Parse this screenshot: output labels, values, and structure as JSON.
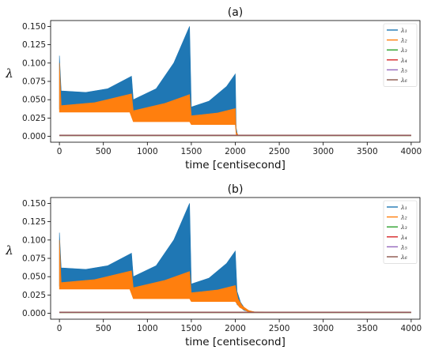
{
  "chart_data": [
    {
      "type": "line",
      "title": "(a)",
      "xlabel": "time [centisecond]",
      "ylabel": "λ",
      "xlim": [
        -100,
        4100
      ],
      "ylim": [
        -0.008,
        0.158
      ],
      "xticks": [
        "0",
        "500",
        "1000",
        "1500",
        "2000",
        "2500",
        "3000",
        "3500",
        "4000"
      ],
      "yticks": [
        "0.000",
        "0.025",
        "0.050",
        "0.075",
        "0.100",
        "0.125",
        "0.150"
      ],
      "legend_position": "top-right",
      "grid": false,
      "series": [
        {
          "name": "λ₁",
          "color": "#1f77b4",
          "upper": [
            [
              0,
              0.11
            ],
            [
              20,
              0.062
            ],
            [
              300,
              0.06
            ],
            [
              550,
              0.065
            ],
            [
              820,
              0.082
            ],
            [
              840,
              0.05
            ],
            [
              1100,
              0.065
            ],
            [
              1300,
              0.1
            ],
            [
              1480,
              0.15
            ],
            [
              1500,
              0.04
            ],
            [
              1700,
              0.048
            ],
            [
              1900,
              0.068
            ],
            [
              2000,
              0.085
            ],
            [
              2010,
              0.012
            ],
            [
              2020,
              0.005
            ],
            [
              2030,
              0.001
            ],
            [
              4000,
              0.001
            ]
          ],
          "lower": [
            [
              0,
              0.037
            ],
            [
              500,
              0.037
            ],
            [
              800,
              0.037
            ],
            [
              840,
              0.024
            ],
            [
              1480,
              0.024
            ],
            [
              1500,
              0.02
            ],
            [
              2000,
              0.02
            ],
            [
              2010,
              0.005
            ],
            [
              2030,
              0.001
            ],
            [
              4000,
              0.001
            ]
          ]
        },
        {
          "name": "λ₂",
          "color": "#ff7f0e",
          "upper": [
            [
              0,
              0.1
            ],
            [
              20,
              0.042
            ],
            [
              400,
              0.046
            ],
            [
              820,
              0.058
            ],
            [
              840,
              0.035
            ],
            [
              1200,
              0.045
            ],
            [
              1480,
              0.057
            ],
            [
              1500,
              0.028
            ],
            [
              1800,
              0.032
            ],
            [
              2000,
              0.038
            ],
            [
              2010,
              0.006
            ],
            [
              2030,
              0.002
            ],
            [
              4000,
              0.001
            ]
          ],
          "lower": [
            [
              0,
              0.033
            ],
            [
              800,
              0.033
            ],
            [
              840,
              0.02
            ],
            [
              1480,
              0.02
            ],
            [
              1500,
              0.016
            ],
            [
              2000,
              0.016
            ],
            [
              2010,
              0.002
            ],
            [
              4000,
              0.001
            ]
          ]
        },
        {
          "name": "λ₃",
          "color": "#2ca02c",
          "values": [
            [
              0,
              0.001
            ],
            [
              4000,
              0.001
            ]
          ]
        },
        {
          "name": "λ₄",
          "color": "#d62728",
          "values": [
            [
              0,
              0.0012
            ],
            [
              4000,
              0.0012
            ]
          ]
        },
        {
          "name": "λ₅",
          "color": "#9467bd",
          "values": [
            [
              0,
              0.0014
            ],
            [
              4000,
              0.0014
            ]
          ]
        },
        {
          "name": "λ₆",
          "color": "#8c564b",
          "values": [
            [
              0,
              0.0016
            ],
            [
              4000,
              0.0016
            ]
          ]
        }
      ]
    },
    {
      "type": "line",
      "title": "(b)",
      "xlabel": "time [centisecond]",
      "ylabel": "λ",
      "xlim": [
        -100,
        4100
      ],
      "ylim": [
        -0.008,
        0.158
      ],
      "xticks": [
        "0",
        "500",
        "1000",
        "1500",
        "2000",
        "2500",
        "3000",
        "3500",
        "4000"
      ],
      "yticks": [
        "0.000",
        "0.025",
        "0.050",
        "0.075",
        "0.100",
        "0.125",
        "0.150"
      ],
      "legend_position": "top-right",
      "grid": false,
      "series": [
        {
          "name": "λ₁",
          "color": "#1f77b4",
          "upper": [
            [
              0,
              0.11
            ],
            [
              20,
              0.062
            ],
            [
              300,
              0.06
            ],
            [
              550,
              0.065
            ],
            [
              820,
              0.082
            ],
            [
              840,
              0.05
            ],
            [
              1100,
              0.065
            ],
            [
              1300,
              0.1
            ],
            [
              1480,
              0.15
            ],
            [
              1500,
              0.04
            ],
            [
              1700,
              0.048
            ],
            [
              1900,
              0.068
            ],
            [
              2000,
              0.085
            ],
            [
              2020,
              0.03
            ],
            [
              2060,
              0.015
            ],
            [
              2100,
              0.008
            ],
            [
              2150,
              0.004
            ],
            [
              2200,
              0.002
            ],
            [
              2250,
              0.001
            ],
            [
              4000,
              0.001
            ]
          ],
          "lower": [
            [
              0,
              0.037
            ],
            [
              500,
              0.037
            ],
            [
              800,
              0.037
            ],
            [
              840,
              0.024
            ],
            [
              1480,
              0.024
            ],
            [
              1500,
              0.02
            ],
            [
              2000,
              0.02
            ],
            [
              2020,
              0.012
            ],
            [
              2100,
              0.004
            ],
            [
              2200,
              0.001
            ],
            [
              4000,
              0.001
            ]
          ]
        },
        {
          "name": "λ₂",
          "color": "#ff7f0e",
          "upper": [
            [
              0,
              0.1
            ],
            [
              20,
              0.042
            ],
            [
              400,
              0.046
            ],
            [
              820,
              0.058
            ],
            [
              840,
              0.035
            ],
            [
              1200,
              0.045
            ],
            [
              1480,
              0.057
            ],
            [
              1500,
              0.028
            ],
            [
              1800,
              0.032
            ],
            [
              2000,
              0.038
            ],
            [
              2030,
              0.02
            ],
            [
              2080,
              0.01
            ],
            [
              2150,
              0.004
            ],
            [
              2250,
              0.001
            ],
            [
              4000,
              0.001
            ]
          ],
          "lower": [
            [
              0,
              0.033
            ],
            [
              800,
              0.033
            ],
            [
              840,
              0.02
            ],
            [
              1480,
              0.02
            ],
            [
              1500,
              0.016
            ],
            [
              2000,
              0.016
            ],
            [
              2050,
              0.008
            ],
            [
              2150,
              0.002
            ],
            [
              4000,
              0.001
            ]
          ]
        },
        {
          "name": "λ₃",
          "color": "#2ca02c",
          "values": [
            [
              0,
              0.001
            ],
            [
              4000,
              0.001
            ]
          ]
        },
        {
          "name": "λ₄",
          "color": "#d62728",
          "values": [
            [
              0,
              0.0012
            ],
            [
              4000,
              0.0012
            ]
          ]
        },
        {
          "name": "λ₅",
          "color": "#9467bd",
          "values": [
            [
              0,
              0.0014
            ],
            [
              4000,
              0.0014
            ]
          ]
        },
        {
          "name": "λ₆",
          "color": "#8c564b",
          "values": [
            [
              0,
              0.0016
            ],
            [
              4000,
              0.0016
            ]
          ]
        }
      ]
    }
  ]
}
